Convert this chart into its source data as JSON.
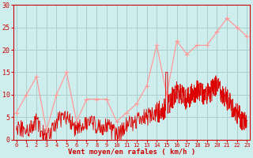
{
  "background_color": "#ceeeed",
  "grid_color": "#aacccc",
  "line_rafales_color": "#ff9999",
  "line_moyen_color": "#dd0000",
  "xlabel": "Vent moyen/en rafales ( km/h )",
  "xlabel_color": "#cc0000",
  "tick_color": "#cc0000",
  "spine_color": "#cc0000",
  "ylim": [
    0,
    30
  ],
  "xlim": [
    0,
    23
  ],
  "yticks": [
    0,
    5,
    10,
    15,
    20,
    25,
    30
  ],
  "xticks": [
    0,
    1,
    2,
    3,
    4,
    5,
    6,
    7,
    8,
    9,
    10,
    11,
    12,
    13,
    14,
    15,
    16,
    17,
    18,
    19,
    20,
    21,
    22,
    23
  ],
  "rafales_x": [
    0,
    1,
    2,
    3,
    4,
    5,
    6,
    7,
    8,
    9,
    10,
    11,
    12,
    13,
    14,
    15,
    16,
    17,
    18,
    19,
    20,
    21,
    22,
    23
  ],
  "rafales_y": [
    6,
    10,
    14,
    2,
    10,
    15,
    4,
    9,
    9,
    9,
    4,
    6,
    8,
    12,
    21,
    10,
    22,
    19,
    21,
    21,
    24,
    27,
    25,
    23
  ],
  "moyen_sparse_x": [
    0,
    1,
    2,
    3,
    4,
    5,
    6,
    7,
    8,
    9,
    10,
    11,
    12,
    13,
    14,
    15,
    16,
    17,
    18,
    19,
    20,
    21,
    22,
    23
  ],
  "moyen_sparse_y": [
    3,
    2,
    4,
    0,
    4,
    5,
    2,
    4,
    3,
    3,
    1,
    3,
    4,
    5,
    6,
    7,
    11,
    9,
    11,
    10,
    12,
    9,
    6,
    3
  ],
  "seed_early": 17,
  "seed_late": 42
}
